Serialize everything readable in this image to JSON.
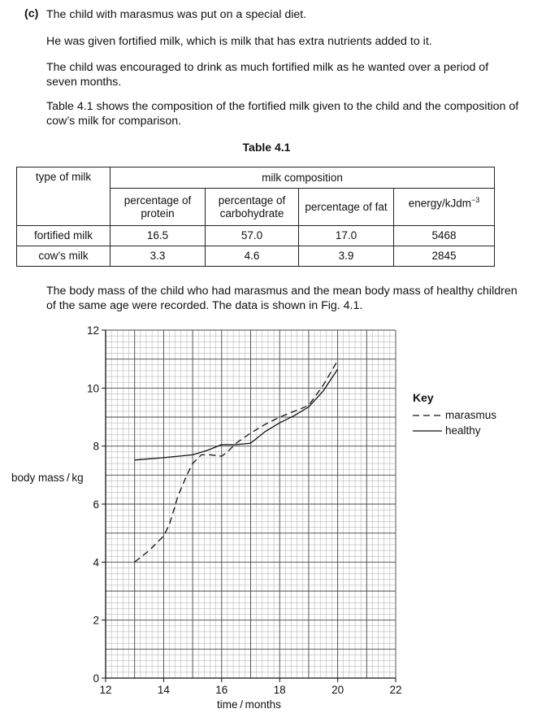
{
  "question": {
    "label": "(c)",
    "intro": "The child with marasmus was put on a special diet.",
    "para1": "He was given fortified milk, which is milk that has extra nutrients added to it.",
    "para2": "The child was encouraged to drink as much fortified milk as he wanted over a period of seven months.",
    "para3": "Table 4.1 shows the composition of the fortified milk given to the child and the composition of cow’s milk for comparison.",
    "para4": "The body mass of the child who had marasmus and the mean body mass of healthy children of the same age were recorded. The data is shown in Fig. 4.1."
  },
  "table": {
    "caption": "Table 4.1",
    "type_header": "type of milk",
    "group_header": "milk composition",
    "col_protein": "percentage of protein",
    "col_carb": "percentage of carbohydrate",
    "col_fat": "percentage of fat",
    "col_energy_base": "energy/kJdm",
    "col_energy_exp": "−3",
    "rows": [
      {
        "type": "fortified milk",
        "protein": "16.5",
        "carb": "57.0",
        "fat": "17.0",
        "energy": "5468"
      },
      {
        "type": "cow’s milk",
        "protein": "3.3",
        "carb": "4.6",
        "fat": "3.9",
        "energy": "2845"
      }
    ]
  },
  "chart_data": {
    "type": "line",
    "xlabel": "time / months",
    "ylabel": "body mass / kg",
    "xlim": [
      12,
      22
    ],
    "ylim": [
      0,
      12
    ],
    "xticks": [
      12,
      14,
      16,
      18,
      20,
      22
    ],
    "yticks": [
      0,
      2,
      4,
      6,
      8,
      10,
      12
    ],
    "grid": true,
    "legend": {
      "title": "Key",
      "placement": "right"
    },
    "series": [
      {
        "name": "marasmus",
        "style": "dashed",
        "x": [
          13,
          13.5,
          14,
          14.2,
          14.5,
          14.8,
          15.0,
          15.3,
          15.6,
          16.0,
          16.2,
          16.5,
          17.0,
          17.5,
          18.0,
          18.5,
          19.0,
          19.5,
          20.0
        ],
        "y": [
          4.0,
          4.4,
          4.9,
          5.3,
          6.3,
          7.0,
          7.4,
          7.7,
          7.7,
          7.65,
          7.8,
          8.1,
          8.45,
          8.75,
          9.0,
          9.2,
          9.4,
          10.1,
          10.95
        ]
      },
      {
        "name": "healthy",
        "style": "solid",
        "x": [
          13,
          14,
          15,
          15.5,
          16,
          16.5,
          17,
          17.5,
          18,
          18.5,
          19,
          19.5,
          20
        ],
        "y": [
          7.52,
          7.6,
          7.7,
          7.85,
          8.05,
          8.05,
          8.1,
          8.5,
          8.8,
          9.05,
          9.35,
          9.9,
          10.65
        ]
      }
    ]
  }
}
